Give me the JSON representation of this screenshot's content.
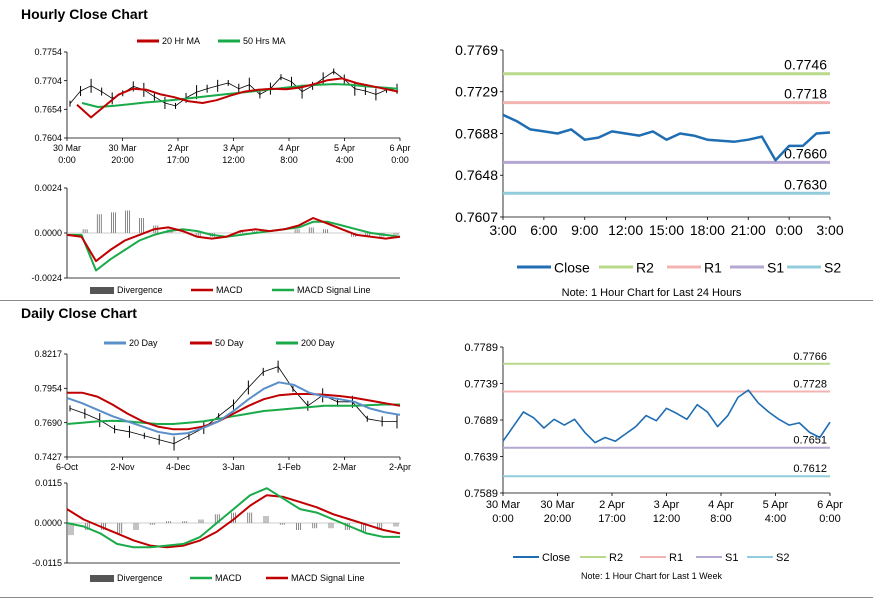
{
  "sections": {
    "hourly_title": "Hourly Close Chart",
    "daily_title": "Daily Close Chart"
  },
  "colors": {
    "price": "#000000",
    "ma_short": "#c00000",
    "ma_long": "#1aaa4a",
    "ma_200": "#1aaa4a",
    "ma_20d": "#5b8fc9",
    "close": "#1f6db3",
    "r2": "#b8d98a",
    "r1": "#f4b3b3",
    "s1": "#b4a7d2",
    "s2": "#93cddd",
    "divergence": "#555555"
  },
  "chart_data": [
    {
      "id": "hourly_price",
      "type": "line",
      "title": "",
      "x_ticks": [
        "30 Mar\n0:00",
        "30 Mar\n20:00",
        "2 Apr\n17:00",
        "3 Apr\n12:00",
        "4 Apr\n8:00",
        "5 Apr\n4:00",
        "6 Apr\n0:00"
      ],
      "y_ticks": [
        "0.7754",
        "0.7704",
        "0.7654",
        "0.7604"
      ],
      "ylim": [
        0.7604,
        0.7754
      ],
      "legend": [
        "20 Hr MA",
        "50 Hrs MA"
      ],
      "series": [
        {
          "name": "Price",
          "values": [
            0.7664,
            0.7686,
            0.7695,
            0.7685,
            0.7673,
            0.7682,
            0.7694,
            0.7688,
            0.7676,
            0.7665,
            0.766,
            0.7674,
            0.7684,
            0.769,
            0.7695,
            0.77,
            0.769,
            0.7697,
            0.768,
            0.769,
            0.771,
            0.7702,
            0.7685,
            0.7695,
            0.7708,
            0.772,
            0.7706,
            0.769,
            0.7686,
            0.768,
            0.7688,
            0.769
          ]
        },
        {
          "name": "20 Hr MA",
          "values": [
            0.7662,
            0.764,
            0.766,
            0.768,
            0.769,
            0.7688,
            0.768,
            0.7675,
            0.7668,
            0.7665,
            0.767,
            0.7678,
            0.7685,
            0.7688,
            0.769,
            0.7689,
            0.7692,
            0.7698,
            0.7705,
            0.7708,
            0.77,
            0.7695,
            0.769,
            0.7685
          ]
        },
        {
          "name": "50 Hrs MA",
          "values": [
            0.7665,
            0.7658,
            0.766,
            0.7663,
            0.7666,
            0.7668,
            0.7671,
            0.7674,
            0.7677,
            0.768,
            0.7683,
            0.7686,
            0.7689,
            0.7692,
            0.7695,
            0.7697,
            0.7698,
            0.7697,
            0.7694,
            0.7692,
            0.769
          ]
        }
      ]
    },
    {
      "id": "hourly_macd",
      "type": "line",
      "y_ticks": [
        "0.0024",
        "0.0000",
        "-0.0024"
      ],
      "ylim": [
        -0.0024,
        0.0024
      ],
      "legend": [
        "Divergence",
        "MACD",
        "MACD Signal Line"
      ],
      "series": [
        {
          "name": "MACD",
          "values": [
            -0.0001,
            -0.0002,
            -0.0015,
            -0.0009,
            -0.0004,
            -0.0001,
            0.0002,
            0.0003,
            0.0001,
            -0.0002,
            -0.0003,
            -0.0002,
            0.0001,
            0.0002,
            0.0001,
            0.0002,
            0.0004,
            0.0008,
            0.0005,
            0.0002,
            -0.0001,
            -0.0002,
            -0.0003,
            -0.0002
          ]
        },
        {
          "name": "MACD Signal Line",
          "values": [
            -0.0001,
            -0.0001,
            -0.002,
            -0.0014,
            -0.0009,
            -0.0004,
            -0.0001,
            0.0001,
            0.0002,
            0.0001,
            -0.0001,
            -0.0002,
            -0.0001,
            0.0,
            0.0001,
            0.0002,
            0.0003,
            0.0006,
            0.0006,
            0.0004,
            0.0002,
            0.0,
            -0.0001,
            -0.0002
          ]
        },
        {
          "name": "Divergence",
          "values": [
            0.0,
            0.0002,
            0.001,
            0.0011,
            0.0012,
            0.0008,
            0.0004,
            0.0002,
            0.0,
            -0.0002,
            -0.0002,
            0.0,
            0.0001,
            0.0001,
            0.0,
            0.0,
            0.0002,
            0.0003,
            0.0002,
            0.0,
            -0.0002,
            -0.0002,
            -0.0002,
            -0.0001
          ]
        }
      ]
    },
    {
      "id": "hourly_levels",
      "type": "line",
      "x_ticks": [
        "3:00",
        "6:00",
        "9:00",
        "12:00",
        "15:00",
        "18:00",
        "21:00",
        "0:00",
        "3:00"
      ],
      "y_ticks": [
        "0.7769",
        "0.7729",
        "0.7688",
        "0.7648",
        "0.7607"
      ],
      "ylim": [
        0.7607,
        0.7769
      ],
      "legend": [
        "Close",
        "R2",
        "R1",
        "S1",
        "S2"
      ],
      "levels": [
        {
          "name": "R2",
          "value": 0.7746,
          "label": "0.7746"
        },
        {
          "name": "R1",
          "value": 0.7718,
          "label": "0.7718"
        },
        {
          "name": "S1",
          "value": 0.766,
          "label": "0.7660"
        },
        {
          "name": "S2",
          "value": 0.763,
          "label": "0.7630"
        }
      ],
      "series": [
        {
          "name": "Close",
          "values": [
            0.7706,
            0.77,
            0.7692,
            0.769,
            0.7688,
            0.7692,
            0.7682,
            0.7684,
            0.769,
            0.7688,
            0.7686,
            0.769,
            0.7682,
            0.7688,
            0.7686,
            0.7682,
            0.7681,
            0.768,
            0.7682,
            0.7685,
            0.7662,
            0.7676,
            0.7676,
            0.7688,
            0.7689
          ]
        },
        {
          "name": "Close_note",
          "values": []
        }
      ],
      "note": "Note: 1 Hour Chart for Last 24 Hours"
    },
    {
      "id": "daily_price",
      "type": "line",
      "x_ticks": [
        "6-Oct",
        "2-Nov",
        "4-Dec",
        "3-Jan",
        "1-Feb",
        "2-Mar",
        "2-Apr"
      ],
      "y_ticks": [
        "0.8217",
        "0.7954",
        "0.7690",
        "0.7427"
      ],
      "ylim": [
        0.7427,
        0.8217
      ],
      "legend": [
        "20 Day",
        "50 Day",
        "200 Day"
      ],
      "series": [
        {
          "name": "Price",
          "values": [
            0.78,
            0.776,
            0.771,
            0.764,
            0.762,
            0.759,
            0.756,
            0.753,
            0.759,
            0.765,
            0.774,
            0.783,
            0.796,
            0.808,
            0.812,
            0.795,
            0.782,
            0.79,
            0.785,
            0.785,
            0.772,
            0.77,
            0.77
          ]
        },
        {
          "name": "20 Day",
          "values": [
            0.788,
            0.784,
            0.779,
            0.774,
            0.77,
            0.766,
            0.762,
            0.76,
            0.761,
            0.765,
            0.77,
            0.778,
            0.787,
            0.795,
            0.8,
            0.798,
            0.792,
            0.789,
            0.787,
            0.785,
            0.78,
            0.777,
            0.775
          ]
        },
        {
          "name": "50 Day",
          "values": [
            0.792,
            0.792,
            0.789,
            0.783,
            0.776,
            0.77,
            0.766,
            0.764,
            0.764,
            0.766,
            0.77,
            0.776,
            0.782,
            0.787,
            0.79,
            0.791,
            0.791,
            0.7905,
            0.7895,
            0.788,
            0.786,
            0.784,
            0.782
          ]
        },
        {
          "name": "200 Day",
          "values": [
            0.768,
            0.769,
            0.77,
            0.7705,
            0.77,
            0.769,
            0.768,
            0.768,
            0.769,
            0.77,
            0.772,
            0.774,
            0.776,
            0.778,
            0.779,
            0.78,
            0.781,
            0.782,
            0.782,
            0.782,
            0.7825,
            0.783,
            0.783
          ]
        }
      ]
    },
    {
      "id": "daily_macd",
      "type": "line",
      "y_ticks": [
        "0.0115",
        "0.0000",
        "-0.0115"
      ],
      "ylim": [
        -0.0115,
        0.0115
      ],
      "legend": [
        "Divergence",
        "MACD",
        "MACD Signal Line"
      ],
      "series": [
        {
          "name": "MACD",
          "values": [
            0.0,
            -0.001,
            -0.003,
            -0.006,
            -0.007,
            -0.007,
            -0.0065,
            -0.006,
            -0.004,
            0.0,
            0.004,
            0.008,
            0.01,
            0.007,
            0.004,
            0.003,
            0.001,
            -0.001,
            -0.003,
            -0.004,
            -0.004
          ]
        },
        {
          "name": "MACD Signal Line",
          "values": [
            0.004,
            0.001,
            -0.001,
            -0.003,
            -0.005,
            -0.0065,
            -0.007,
            -0.0065,
            -0.005,
            -0.0025,
            0.001,
            0.005,
            0.008,
            0.0075,
            0.006,
            0.0045,
            0.0025,
            0.001,
            -0.0005,
            -0.002,
            -0.003
          ]
        },
        {
          "name": "Divergence",
          "values": [
            -0.0035,
            -0.002,
            -0.002,
            -0.003,
            -0.002,
            -0.0005,
            0.0005,
            0.0005,
            0.001,
            0.0025,
            0.003,
            0.003,
            0.002,
            -0.0005,
            -0.002,
            -0.0015,
            -0.0015,
            -0.002,
            -0.0025,
            -0.002,
            -0.001
          ]
        }
      ]
    },
    {
      "id": "daily_levels",
      "type": "line",
      "x_ticks": [
        "30 Mar\n0:00",
        "30 Mar\n20:00",
        "2 Apr\n17:00",
        "3 Apr\n12:00",
        "4 Apr\n8:00",
        "5 Apr\n4:00",
        "6 Apr\n0:00"
      ],
      "y_ticks": [
        "0.7789",
        "0.7739",
        "0.7689",
        "0.7639",
        "0.7589"
      ],
      "ylim": [
        0.7589,
        0.7789
      ],
      "legend": [
        "Close",
        "R2",
        "R1",
        "S1",
        "S2"
      ],
      "levels": [
        {
          "name": "R2",
          "value": 0.7766,
          "label": "0.7766"
        },
        {
          "name": "R1",
          "value": 0.7728,
          "label": "0.7728"
        },
        {
          "name": "S1",
          "value": 0.7651,
          "label": "0.7651"
        },
        {
          "name": "S2",
          "value": 0.7612,
          "label": "0.7612"
        }
      ],
      "series": [
        {
          "name": "Close",
          "values": [
            0.766,
            0.768,
            0.77,
            0.7692,
            0.7678,
            0.769,
            0.7682,
            0.769,
            0.7672,
            0.7658,
            0.7665,
            0.766,
            0.767,
            0.768,
            0.7695,
            0.7688,
            0.7705,
            0.7698,
            0.769,
            0.771,
            0.77,
            0.768,
            0.7695,
            0.772,
            0.773,
            0.7712,
            0.77,
            0.769,
            0.7682,
            0.7685,
            0.7672,
            0.7665,
            0.7686
          ]
        }
      ],
      "note": "Note: 1 Hour Chart for Last 1 Week"
    }
  ]
}
